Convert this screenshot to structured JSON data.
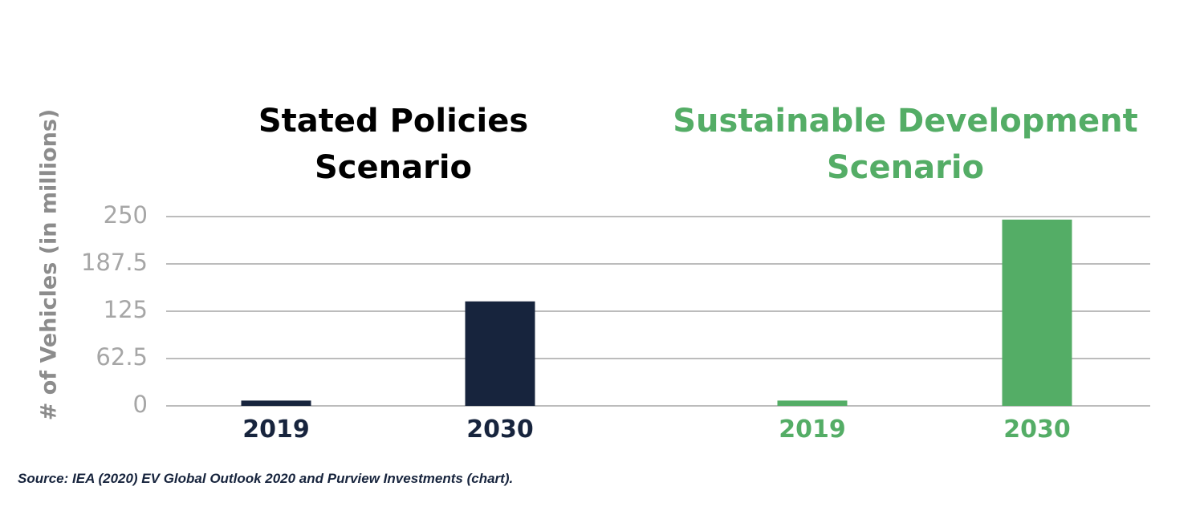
{
  "colors": {
    "stated": "#17243d",
    "sustainable": "#54ad66",
    "grid": "#a6a6a6",
    "tick": "#a6a6a6",
    "ylabel": "#8c8c8c"
  },
  "source": "Source: IEA (2020) EV Global Outlook 2020 and Purview Investments (chart).",
  "chart_data": {
    "type": "bar",
    "ylabel": "# of Vehicles (in millions)",
    "ylim": [
      0,
      250
    ],
    "yticks": [
      "250",
      "187.5",
      "125",
      "62.5",
      "0"
    ],
    "grid": true,
    "groups": [
      {
        "title_lines": [
          "Stated Policies",
          "Scenario"
        ],
        "categories": [
          "2019",
          "2030"
        ],
        "values": [
          7,
          138
        ],
        "color": "#17243d"
      },
      {
        "title_lines": [
          "Sustainable Development",
          "Scenario"
        ],
        "categories": [
          "2019",
          "2030"
        ],
        "values": [
          7,
          246
        ],
        "color": "#54ad66"
      }
    ]
  }
}
